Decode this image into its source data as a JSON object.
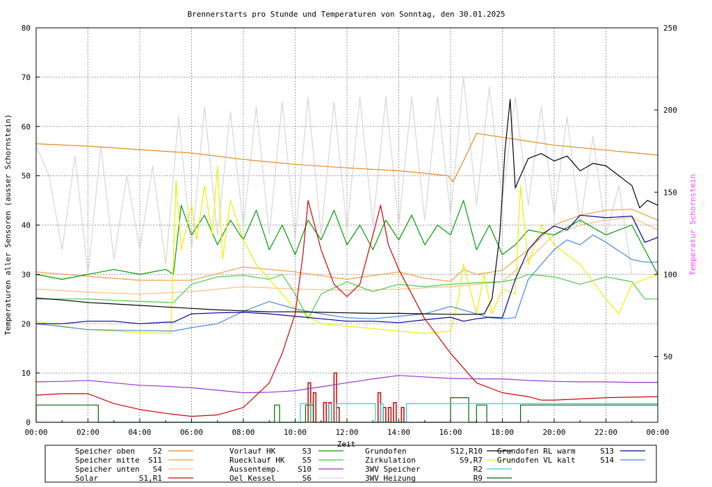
{
  "chart_data": {
    "type": "line",
    "title": "Brennerstarts pro Stunde und Temperaturen von Sonntag, den 30.01.2025",
    "xlabel": "Zeit",
    "ylabel": "Temperaturen aller Sensoren (ausser Schornstein)",
    "y2label": "Temperatur Schornstein",
    "xlim": [
      0,
      24
    ],
    "ylim": [
      0,
      80
    ],
    "y2lim": [
      10,
      250
    ],
    "grid": true,
    "legend_position": "bottom",
    "x_ticks": [
      "00:00",
      "02:00",
      "04:00",
      "06:00",
      "08:00",
      "10:00",
      "12:00",
      "14:00",
      "16:00",
      "18:00",
      "20:00",
      "22:00",
      "00:00"
    ],
    "y_ticks": [
      "0",
      "10",
      "20",
      "30",
      "40",
      "50",
      "60",
      "70",
      "80"
    ],
    "y2_ticks": [
      "50",
      "100",
      "150",
      "200",
      "250"
    ],
    "series": [
      {
        "name": "Speicher oben",
        "sensor": "S2",
        "color": "#e08a1e",
        "axis": "y",
        "x": [
          0,
          2,
          4,
          6,
          8,
          10,
          12,
          14,
          15,
          15.9,
          16.1,
          16.5,
          17,
          18,
          20,
          22,
          24
        ],
        "y": [
          56.5,
          56,
          55.3,
          54.6,
          53.3,
          52.3,
          51.6,
          51,
          50.5,
          50,
          48.8,
          53,
          58.6,
          57.8,
          56.2,
          55.2,
          54.2
        ]
      },
      {
        "name": "Speicher mitte",
        "sensor": "S11",
        "color": "#f0a040",
        "axis": "y",
        "x": [
          0,
          2,
          4,
          6,
          8,
          10,
          12,
          14,
          15,
          16,
          16.5,
          17,
          18,
          19,
          20,
          21,
          22,
          23,
          24
        ],
        "y": [
          30.5,
          29.6,
          28.8,
          28.8,
          31.5,
          30.5,
          29,
          30.5,
          29.2,
          28.6,
          31,
          30,
          30.8,
          35,
          40,
          42,
          43,
          43.2,
          41
        ]
      },
      {
        "name": "Speicher unten",
        "sensor": "S4",
        "color": "#f5c080",
        "axis": "y",
        "x": [
          0,
          2,
          4,
          6,
          8,
          10,
          12,
          14,
          16,
          18,
          19,
          20,
          21,
          22,
          23,
          24
        ],
        "y": [
          27,
          26.4,
          26,
          26.5,
          27.5,
          27,
          26.8,
          27,
          27.5,
          28.5,
          33,
          38,
          40,
          41,
          41.5,
          39
        ]
      },
      {
        "name": "Solar",
        "sensor": "S1,R1",
        "color": "#cc0000",
        "axis": "y",
        "x": [
          0,
          1,
          2,
          3,
          4,
          5,
          6,
          7,
          8,
          9,
          9.5,
          10,
          10.3,
          10.5,
          11,
          11.5,
          12,
          12.5,
          13,
          13.3,
          13.6,
          14,
          14.5,
          15,
          16,
          17,
          18,
          19,
          19.5,
          20,
          22,
          24
        ],
        "y": [
          5.5,
          5.8,
          5.8,
          3.8,
          2.6,
          1.8,
          1.2,
          1.5,
          3,
          8,
          14,
          22,
          34,
          45,
          35,
          28,
          25.5,
          28,
          38,
          44,
          36,
          31,
          26,
          21,
          14,
          8,
          6,
          5.2,
          4.5,
          4.5,
          5,
          5.2
        ]
      },
      {
        "name": "Vorlauf HK",
        "sensor": "S3",
        "color": "#009900",
        "axis": "y",
        "x": [
          0,
          1,
          2,
          3,
          4,
          5,
          5.3,
          5.6,
          6,
          6.5,
          7,
          7.5,
          8,
          8.5,
          9,
          9.5,
          10,
          10.5,
          11,
          11.5,
          12,
          12.5,
          13,
          13.5,
          14,
          14.5,
          15,
          15.5,
          16,
          16.5,
          17,
          17.5,
          18,
          18.5,
          19,
          20,
          21,
          22,
          23,
          24
        ],
        "y": [
          30,
          29,
          30,
          31,
          30,
          31,
          30,
          44,
          38,
          42,
          36,
          41,
          37,
          43,
          35,
          40,
          34,
          41,
          37,
          43,
          36,
          40,
          35,
          41,
          37,
          42,
          36,
          40,
          38,
          45,
          35,
          40,
          34,
          36,
          39,
          38,
          41,
          38,
          40,
          30
        ]
      },
      {
        "name": "Ruecklauf HK",
        "sensor": "S5",
        "color": "#44cc44",
        "axis": "y",
        "x": [
          0,
          2,
          4,
          5.3,
          6,
          7,
          8,
          9,
          9.5,
          10,
          10.5,
          11,
          12,
          13,
          14,
          15,
          16,
          17,
          18,
          18.5,
          19,
          20,
          21,
          22,
          23,
          23.5,
          24
        ],
        "y": [
          25,
          25,
          24.5,
          24.3,
          28,
          29.5,
          29.8,
          29,
          30,
          26,
          21,
          26,
          28.5,
          26.5,
          28,
          27.5,
          28,
          28.3,
          28.5,
          29,
          30,
          29.5,
          28,
          29.5,
          28.5,
          25,
          25
        ]
      },
      {
        "name": "Aussentemp.",
        "sensor": "S10",
        "color": "#9933cc",
        "axis": "y",
        "x": [
          0,
          1,
          2,
          3,
          4,
          5,
          6,
          7,
          8,
          9,
          10,
          11,
          12,
          13,
          14,
          15,
          16,
          17,
          18,
          19,
          20,
          21,
          22,
          23,
          24
        ],
        "y": [
          8.2,
          8.3,
          8.5,
          8,
          7.5,
          7.3,
          7,
          6.5,
          6,
          6.1,
          6.4,
          7.2,
          8,
          8.8,
          9.5,
          9.2,
          8.9,
          8.8,
          8.8,
          8.5,
          8.3,
          8.2,
          8.2,
          8.1,
          8.1
        ]
      },
      {
        "name": "Oel Kessel",
        "sensor": "S6",
        "color": "#d6d6d6",
        "axis": "y",
        "x": [
          0,
          0.5,
          1,
          1.5,
          2,
          2.5,
          3,
          3.5,
          4,
          4.5,
          5,
          5.5,
          6,
          6.5,
          7,
          7.5,
          8,
          8.5,
          9,
          9.5,
          10,
          10.5,
          11,
          11.5,
          12,
          12.5,
          13,
          13.5,
          14,
          14.5,
          15,
          15.5,
          16,
          16.5,
          17,
          17.5,
          18,
          18.5,
          19,
          19.5,
          20,
          20.5,
          21,
          21.5,
          22,
          22.5,
          23,
          23.5,
          24
        ],
        "y": [
          56,
          50,
          35,
          54,
          30,
          56,
          33,
          50,
          35,
          52,
          32,
          62,
          35,
          64,
          38,
          63,
          40,
          64,
          38,
          65,
          37,
          66,
          38,
          65,
          39,
          66,
          40,
          66,
          40,
          66,
          41,
          66,
          42,
          70,
          44,
          68,
          45,
          66,
          44,
          64,
          42,
          62,
          40,
          58,
          38,
          48,
          30,
          30,
          30
        ]
      },
      {
        "name": "Grundofen",
        "sensor": "S12,R10",
        "color": "#000000",
        "axis": "y",
        "x": [
          0,
          1,
          2,
          3,
          4,
          5,
          6,
          7,
          8,
          9,
          10,
          11,
          12,
          13,
          14,
          15,
          16,
          17,
          17.3,
          17.6,
          17.9,
          18.1,
          18.3,
          18.5,
          18.7,
          19,
          19.5,
          20,
          20.5,
          21,
          21.5,
          22,
          22.5,
          23,
          23.3,
          23.6,
          24
        ],
        "y": [
          25.2,
          24.8,
          24.3,
          24,
          23.7,
          23.4,
          23.1,
          22.8,
          22.6,
          22.4,
          22.4,
          22.3,
          22.2,
          22.1,
          22.1,
          22,
          21.9,
          21.9,
          22,
          25,
          38,
          55,
          65.5,
          47.5,
          50,
          53.5,
          54.5,
          53,
          54,
          51,
          52.5,
          52,
          50,
          48,
          43.5,
          45,
          44
        ]
      },
      {
        "name": "Grundofen RL warm",
        "sensor": "S13",
        "color": "#000099",
        "axis": "y",
        "x": [
          0,
          1,
          2,
          3,
          4,
          5,
          5.3,
          6,
          7,
          8,
          9,
          10,
          11,
          12,
          13,
          14,
          15,
          16,
          16.5,
          17,
          17.5,
          18,
          18.5,
          19,
          19.5,
          20,
          20.5,
          21,
          22,
          23,
          23.5,
          24
        ],
        "y": [
          20,
          20,
          20.5,
          20.5,
          20,
          20.3,
          20.3,
          22,
          22.2,
          22.3,
          22,
          21.5,
          21,
          20.5,
          20.5,
          20.2,
          20.8,
          21.3,
          20.5,
          21,
          21.3,
          21.2,
          29,
          35,
          38,
          39.8,
          39,
          42,
          41.5,
          41.8,
          36.5,
          37.5
        ]
      },
      {
        "name": "3WV Speicher",
        "sensor": "R2",
        "color": "#33cccc",
        "axis": "y",
        "x": [
          0,
          10.2,
          10.2,
          10.6,
          10.6,
          11.3,
          11.3,
          11.4,
          11.4,
          11.6,
          11.6,
          13.1,
          13.1,
          13.3,
          13.3,
          13.4,
          13.4,
          14.3,
          14.3,
          24
        ],
        "y": [
          0,
          0,
          3.8,
          3.8,
          0,
          0,
          3.8,
          3.8,
          0,
          0,
          3.8,
          3.8,
          0,
          0,
          3.8,
          3.8,
          0,
          0,
          3.8,
          3.8
        ]
      },
      {
        "name": "3WV Heizung",
        "sensor": "R9",
        "color": "#006600",
        "axis": "y",
        "x": [
          0,
          0,
          2.4,
          2.4,
          9.2,
          9.2,
          9.4,
          9.4,
          10.4,
          10.4,
          10.7,
          10.7,
          16,
          16,
          16.7,
          16.7,
          17,
          17,
          17.4,
          17.4,
          18.7,
          18.7,
          24
        ],
        "y": [
          0,
          3.5,
          3.5,
          0,
          0,
          3.5,
          3.5,
          0,
          0,
          3.5,
          3.5,
          0,
          0,
          5,
          5,
          0,
          0,
          3.5,
          3.5,
          0,
          0,
          3.5,
          3.5
        ]
      },
      {
        "name": "Zirkulation",
        "sensor": "S9,R7",
        "color": "#eeee00",
        "axis": "y",
        "x": [
          0,
          1,
          2,
          3,
          4,
          5.2,
          5.4,
          5.6,
          6,
          6.2,
          6.5,
          6.8,
          7,
          7.2,
          7.5,
          8,
          8.5,
          9,
          9.5,
          10,
          11,
          12,
          13,
          14,
          15,
          16,
          16.3,
          16.5,
          17,
          17.3,
          17.6,
          18,
          18.5,
          18.7,
          19,
          19.5,
          20,
          21,
          22,
          22.5,
          23,
          24
        ],
        "y": [
          20.5,
          19.5,
          18.8,
          18.5,
          18.2,
          18,
          49,
          35,
          44,
          37,
          48,
          38,
          52,
          33,
          45,
          37,
          32,
          29,
          26,
          23,
          20,
          19.5,
          19,
          18.5,
          18,
          18.5,
          25,
          32,
          22,
          30,
          22,
          27,
          26,
          48,
          32,
          40,
          36,
          32,
          25,
          22,
          28,
          30
        ]
      },
      {
        "name": "Grundofen VL kalt",
        "sensor": "S14",
        "color": "#4488dd",
        "axis": "y",
        "x": [
          0,
          2,
          4,
          5.3,
          6,
          7,
          8,
          9,
          10,
          11,
          12,
          13,
          14,
          15,
          16,
          17,
          17.5,
          18,
          18.5,
          19,
          20,
          20.5,
          21,
          21.5,
          22,
          23,
          23.5,
          24
        ],
        "y": [
          20,
          18.8,
          18.6,
          18.5,
          19.2,
          20,
          22.5,
          24.5,
          23,
          22,
          21.2,
          21,
          21.5,
          22,
          23.5,
          22,
          21.2,
          21,
          21.2,
          29,
          35,
          37,
          36,
          38,
          36.5,
          33,
          32.5,
          32.5
        ]
      }
    ],
    "burner_starts": {
      "name": "Brennerstarts pro Stunde",
      "color": "#cc0000",
      "x": [
        10.5,
        10.7,
        11.1,
        11.3,
        11.5,
        11.6,
        13.2,
        13.4,
        13.6,
        13.8,
        14.1
      ],
      "y": [
        8,
        6,
        4,
        4,
        10,
        3,
        6,
        3,
        3,
        4,
        3
      ]
    }
  }
}
